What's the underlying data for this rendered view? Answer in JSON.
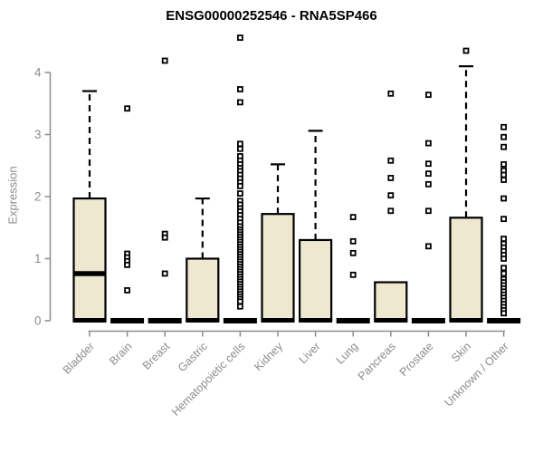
{
  "title": "ENSG00000252546 - RNA5SP466",
  "ylabel": "Expression",
  "colors": {
    "box_fill": "#ede8cf",
    "box_stroke": "#000000",
    "axis_gray": "#8c8c8c",
    "title_color": "#000000",
    "background": "#ffffff"
  },
  "chart_data": {
    "type": "boxplot",
    "title": "ENSG00000252546 - RNA5SP466",
    "xlabel": "",
    "ylabel": "Expression",
    "ylim": [
      0,
      4.6
    ],
    "yticks": [
      0,
      1,
      2,
      3,
      4
    ],
    "grid": false,
    "legend": "none",
    "categories": [
      "Bladder",
      "Brain",
      "Breast",
      "Gastric",
      "Hematopoietic cells",
      "Kidney",
      "Liver",
      "Lung",
      "Pancreas",
      "Prostate",
      "Skin",
      "Unknown / Other"
    ],
    "series": [
      {
        "category": "Bladder",
        "q1": 0,
        "median": 0.76,
        "q3": 1.97,
        "whisker_low": 0,
        "whisker_high": 3.7,
        "outliers": []
      },
      {
        "category": "Brain",
        "q1": 0,
        "median": 0,
        "q3": 0,
        "whisker_low": 0,
        "whisker_high": 0,
        "outliers": [
          3.42,
          1.08,
          1.02,
          0.96,
          0.9,
          0.49
        ]
      },
      {
        "category": "Breast",
        "q1": 0,
        "median": 0,
        "q3": 0,
        "whisker_low": 0,
        "whisker_high": 0,
        "outliers": [
          4.19,
          1.4,
          1.34,
          0.76
        ]
      },
      {
        "category": "Gastric",
        "q1": 0,
        "median": 0,
        "q3": 1.0,
        "whisker_low": 0,
        "whisker_high": 1.97,
        "outliers": []
      },
      {
        "category": "Hematopoietic cells",
        "q1": 0,
        "median": 0,
        "q3": 0,
        "whisker_low": 0,
        "whisker_high": 0,
        "outliers": [
          4.56,
          3.73,
          3.52,
          2.85,
          2.77,
          2.65,
          2.58,
          2.52,
          2.46,
          2.41,
          2.35,
          2.29,
          2.23,
          2.17,
          2.05,
          1.93,
          1.87,
          1.81,
          1.76,
          1.7,
          1.64,
          1.58,
          1.52,
          1.47,
          1.43,
          1.39,
          1.35,
          1.31,
          1.27,
          1.23,
          1.19,
          1.15,
          1.11,
          1.07,
          1.03,
          0.99,
          0.95,
          0.91,
          0.87,
          0.83,
          0.79,
          0.75,
          0.71,
          0.67,
          0.63,
          0.59,
          0.55,
          0.51,
          0.47,
          0.43,
          0.39,
          0.35,
          0.31,
          0.23
        ]
      },
      {
        "category": "Kidney",
        "q1": 0,
        "median": 0,
        "q3": 1.72,
        "whisker_low": 0,
        "whisker_high": 2.52,
        "outliers": []
      },
      {
        "category": "Liver",
        "q1": 0,
        "median": 0,
        "q3": 1.3,
        "whisker_low": 0,
        "whisker_high": 3.06,
        "outliers": []
      },
      {
        "category": "Lung",
        "q1": 0,
        "median": 0,
        "q3": 0,
        "whisker_low": 0,
        "whisker_high": 0,
        "outliers": [
          1.67,
          1.28,
          1.09,
          0.74
        ]
      },
      {
        "category": "Pancreas",
        "q1": 0,
        "median": 0,
        "q3": 0.62,
        "whisker_low": 0,
        "whisker_high": 0.62,
        "outliers": [
          3.66,
          2.58,
          2.3,
          2.02,
          1.77
        ]
      },
      {
        "category": "Prostate",
        "q1": 0,
        "median": 0,
        "q3": 0,
        "whisker_low": 0,
        "whisker_high": 0,
        "outliers": [
          3.64,
          2.86,
          2.53,
          2.37,
          2.2,
          1.77,
          1.2
        ]
      },
      {
        "category": "Skin",
        "q1": 0,
        "median": 0,
        "q3": 1.66,
        "whisker_low": 0,
        "whisker_high": 4.1,
        "outliers": [
          4.35
        ]
      },
      {
        "category": "Unknown / Other",
        "q1": 0,
        "median": 0,
        "q3": 0,
        "whisker_low": 0,
        "whisker_high": 0,
        "outliers": [
          3.12,
          2.96,
          2.8,
          2.52,
          2.42,
          2.35,
          2.27,
          1.97,
          1.64,
          1.32,
          1.24,
          1.18,
          1.12,
          1.06,
          1.0,
          0.85,
          0.76,
          0.67,
          0.62,
          0.57,
          0.52,
          0.47,
          0.42,
          0.37,
          0.32,
          0.27,
          0.22,
          0.17,
          0.12
        ]
      }
    ]
  }
}
